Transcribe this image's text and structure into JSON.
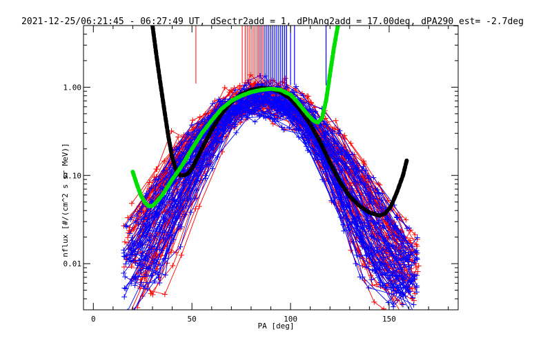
{
  "chart_data": {
    "type": "line",
    "title": "2021-12-25/06:21:45 - 06:27:49 UT, dSectr2add = 1, dPhAng2add = 17.00deg, dPA290_est=  -2.7deg",
    "xlabel": "PA [deg]",
    "ylabel": "nflux [#/(cm^2 s sr MeV)]",
    "xlim": [
      -5,
      185
    ],
    "ylim": [
      0.003,
      5.0
    ],
    "yscale": "log",
    "xticks": [
      0,
      50,
      100,
      150
    ],
    "xtick_labels": [
      "0",
      "50",
      "100",
      "150"
    ],
    "yticks": [
      0.01,
      0.1,
      1.0
    ],
    "ytick_labels": [
      "0.01",
      "0.10",
      "1.00"
    ],
    "grid": false,
    "colors": {
      "red": "#ff0000",
      "blue": "#0000ff",
      "black": "#000000",
      "green": "#00e000"
    },
    "series": [
      {
        "color": "black",
        "style": "thick-dashed",
        "x": [
          30,
          32,
          34,
          36,
          38,
          40,
          42,
          44,
          46,
          48,
          50,
          55,
          60,
          65,
          70,
          75,
          80,
          85,
          90,
          95,
          100,
          105,
          110,
          115,
          120,
          125,
          130,
          135,
          140,
          145,
          148,
          151,
          154,
          157,
          159
        ],
        "y": [
          5.0,
          2.3,
          1.1,
          0.55,
          0.28,
          0.16,
          0.115,
          0.1,
          0.1,
          0.105,
          0.12,
          0.2,
          0.33,
          0.5,
          0.68,
          0.83,
          0.93,
          0.98,
          0.96,
          0.88,
          0.74,
          0.55,
          0.38,
          0.24,
          0.14,
          0.085,
          0.058,
          0.045,
          0.038,
          0.035,
          0.037,
          0.045,
          0.065,
          0.1,
          0.15
        ]
      },
      {
        "color": "green",
        "style": "thick-dashed",
        "x": [
          20,
          22,
          24,
          26,
          28,
          30,
          32,
          35,
          40,
          45,
          50,
          55,
          60,
          65,
          70,
          75,
          80,
          85,
          90,
          95,
          100,
          103,
          106,
          109,
          112,
          114,
          116,
          118,
          120,
          122,
          124
        ],
        "y": [
          0.11,
          0.08,
          0.06,
          0.05,
          0.045,
          0.045,
          0.05,
          0.06,
          0.09,
          0.13,
          0.2,
          0.3,
          0.42,
          0.57,
          0.7,
          0.8,
          0.88,
          0.93,
          0.96,
          0.93,
          0.82,
          0.7,
          0.58,
          0.48,
          0.41,
          0.4,
          0.45,
          0.7,
          1.4,
          2.8,
          5.0
        ]
      }
    ],
    "traces": [
      {
        "color": "red",
        "count": 60,
        "description": "many pitch-angle distribution curves"
      },
      {
        "color": "blue",
        "count": 60,
        "description": "many pitch-angle distribution curves"
      }
    ],
    "marker_lines_red_x": [
      52,
      75.5,
      77,
      78,
      79,
      80,
      81,
      82,
      83,
      84,
      85,
      86
    ],
    "marker_lines_blue_x": [
      84,
      85,
      86,
      87,
      88,
      89,
      90,
      91,
      92,
      93,
      94,
      95,
      96,
      97,
      98,
      100,
      102,
      118
    ]
  }
}
